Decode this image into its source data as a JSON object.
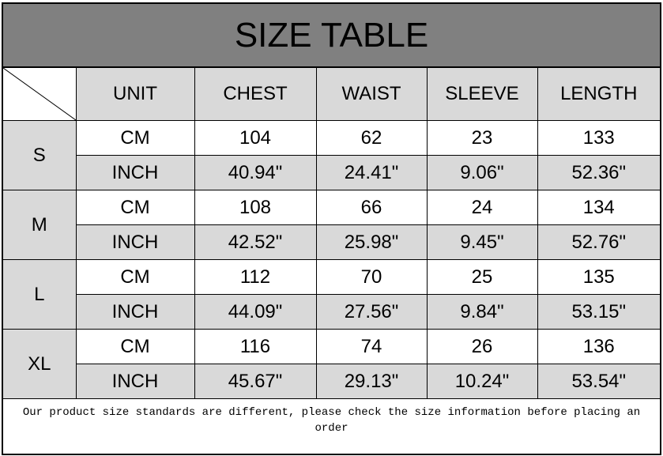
{
  "title": "SIZE TABLE",
  "headers": [
    "UNIT",
    "CHEST",
    "WAIST",
    "SLEEVE",
    "LENGTH"
  ],
  "sizes": [
    {
      "size": "S",
      "cm": {
        "unit": "CM",
        "chest": "104",
        "waist": "62",
        "sleeve": "23",
        "length": "133"
      },
      "inch": {
        "unit": "INCH",
        "chest": "40.94\"",
        "waist": "24.41\"",
        "sleeve": "9.06\"",
        "length": "52.36\""
      }
    },
    {
      "size": "M",
      "cm": {
        "unit": "CM",
        "chest": "108",
        "waist": "66",
        "sleeve": "24",
        "length": "134"
      },
      "inch": {
        "unit": "INCH",
        "chest": "42.52\"",
        "waist": "25.98\"",
        "sleeve": "9.45\"",
        "length": "52.76\""
      }
    },
    {
      "size": "L",
      "cm": {
        "unit": "CM",
        "chest": "112",
        "waist": "70",
        "sleeve": "25",
        "length": "135"
      },
      "inch": {
        "unit": "INCH",
        "chest": "44.09\"",
        "waist": "27.56\"",
        "sleeve": "9.84\"",
        "length": "53.15\""
      }
    },
    {
      "size": "XL",
      "cm": {
        "unit": "CM",
        "chest": "116",
        "waist": "74",
        "sleeve": "26",
        "length": "136"
      },
      "inch": {
        "unit": "INCH",
        "chest": "45.67\"",
        "waist": "29.13\"",
        "sleeve": "10.24\"",
        "length": "53.54\""
      }
    }
  ],
  "footer": "Our product size standards are different, please check the size information before placing an order",
  "colors": {
    "title_bg": "#808080",
    "cell_gray": "#d9d9d9",
    "cell_white": "#ffffff"
  }
}
